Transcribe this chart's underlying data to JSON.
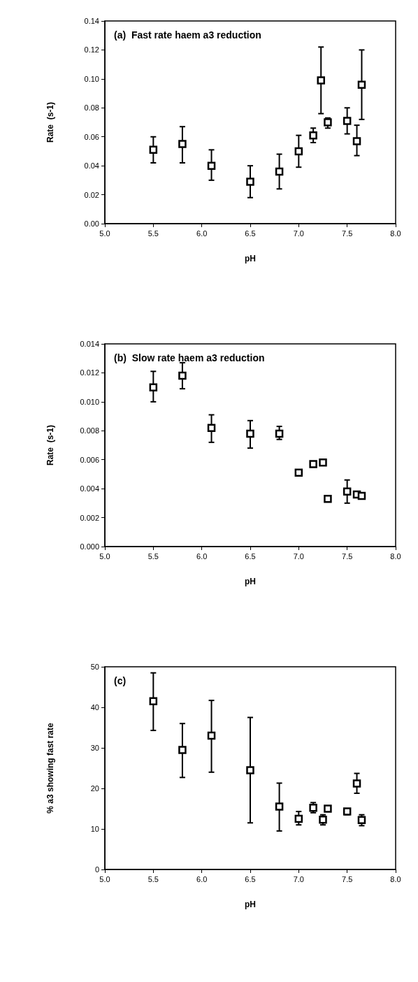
{
  "chart_data": [
    {
      "type": "scatter",
      "title": "(a)  Fast rate haem a3 reduction",
      "xlabel": "pH",
      "ylabel": "Rate  (s-1)",
      "marker": "square",
      "color": "#000000",
      "x": [
        5.5,
        5.8,
        6.1,
        6.5,
        6.8,
        7.0,
        7.15,
        7.23,
        7.3,
        7.5,
        7.6,
        7.65
      ],
      "values": [
        0.051,
        0.055,
        0.04,
        0.029,
        0.036,
        0.05,
        0.061,
        0.099,
        0.07,
        0.071,
        0.057,
        0.096
      ],
      "errors": [
        [
          0.042,
          0.06
        ],
        [
          0.042,
          0.067
        ],
        [
          0.03,
          0.051
        ],
        [
          0.018,
          0.04
        ],
        [
          0.024,
          0.048
        ],
        [
          0.039,
          0.061
        ],
        [
          0.056,
          0.066
        ],
        [
          0.076,
          0.122
        ],
        [
          0.066,
          0.073
        ],
        [
          0.062,
          0.08
        ],
        [
          0.047,
          0.068
        ],
        [
          0.072,
          0.12
        ]
      ],
      "xlim": [
        5.0,
        8.0
      ],
      "xticks": [
        {
          "value": 5.0,
          "label": "5.0"
        },
        5.5,
        {
          "value": 6.0,
          "label": "6.0"
        },
        6.5,
        {
          "value": 7.0,
          "label": "7.0"
        },
        7.5,
        {
          "value": 8.0,
          "label": "8.0"
        }
      ],
      "ylim": [
        0,
        0.14
      ],
      "yticks": [
        {
          "value": 0,
          "label": "0.00"
        },
        0.02,
        0.04,
        0.06,
        0.08,
        {
          "value": 0.1,
          "label": "0.10"
        },
        0.12,
        0.14
      ]
    },
    {
      "type": "scatter",
      "title": "(b)  Slow rate haem a3 reduction",
      "xlabel": "pH",
      "ylabel": "Rate  (s-1)",
      "marker": "square",
      "color": "#000000",
      "x": [
        5.5,
        5.8,
        6.1,
        6.5,
        6.8,
        7.0,
        7.15,
        7.25,
        7.3,
        7.5,
        7.6,
        7.65
      ],
      "values": [
        0.011,
        0.0118,
        0.0082,
        0.0078,
        0.0078,
        0.0051,
        0.0057,
        0.0058,
        0.0033,
        0.0038,
        0.0036,
        0.0035
      ],
      "errors": [
        [
          0.01,
          0.0121
        ],
        [
          0.0109,
          0.0127
        ],
        [
          0.0072,
          0.0091
        ],
        [
          0.0068,
          0.0087
        ],
        [
          0.0074,
          0.0083
        ],
        null,
        null,
        null,
        null,
        [
          0.003,
          0.0046
        ],
        null,
        null
      ],
      "xlim": [
        5.0,
        8.0
      ],
      "xticks": [
        {
          "value": 5.0,
          "label": "5.0"
        },
        5.5,
        {
          "value": 6.0,
          "label": "6.0"
        },
        6.5,
        {
          "value": 7.0,
          "label": "7.0"
        },
        7.5,
        {
          "value": 8.0,
          "label": "8.0"
        }
      ],
      "ylim": [
        0,
        0.014
      ],
      "yticks": [
        {
          "value": 0,
          "label": "0.000"
        },
        0.002,
        0.004,
        0.006,
        0.008,
        {
          "value": 0.01,
          "label": "0.010"
        },
        0.012,
        0.014
      ]
    },
    {
      "type": "scatter",
      "title": "(c)",
      "xlabel": "pH",
      "ylabel": "% a3 showing fast rate",
      "marker": "square",
      "color": "#000000",
      "x": [
        5.5,
        5.8,
        6.1,
        6.5,
        6.8,
        7.0,
        7.15,
        7.25,
        7.3,
        7.5,
        7.6,
        7.65
      ],
      "values": [
        41.5,
        29.5,
        33,
        24.5,
        15.5,
        12.5,
        15.2,
        12.3,
        15,
        14.3,
        21.2,
        12.2
      ],
      "errors": [
        [
          34.3,
          48.5
        ],
        [
          22.7,
          36
        ],
        [
          24,
          41.7
        ],
        [
          11.5,
          37.5
        ],
        [
          9.5,
          21.3
        ],
        [
          11,
          14.3
        ],
        [
          14,
          16.5
        ],
        [
          11,
          13.5
        ],
        null,
        [
          13.5,
          15
        ],
        [
          18.8,
          23.7
        ],
        [
          10.8,
          13.5
        ]
      ],
      "xlim": [
        5.0,
        8.0
      ],
      "xticks": [
        {
          "value": 5.0,
          "label": "5.0"
        },
        5.5,
        {
          "value": 6.0,
          "label": "6.0"
        },
        6.5,
        {
          "value": 7.0,
          "label": "7.0"
        },
        7.5,
        {
          "value": 8.0,
          "label": "8.0"
        }
      ],
      "ylim": [
        0,
        50
      ],
      "yticks": [
        0,
        10,
        20,
        30,
        40,
        50
      ]
    }
  ]
}
